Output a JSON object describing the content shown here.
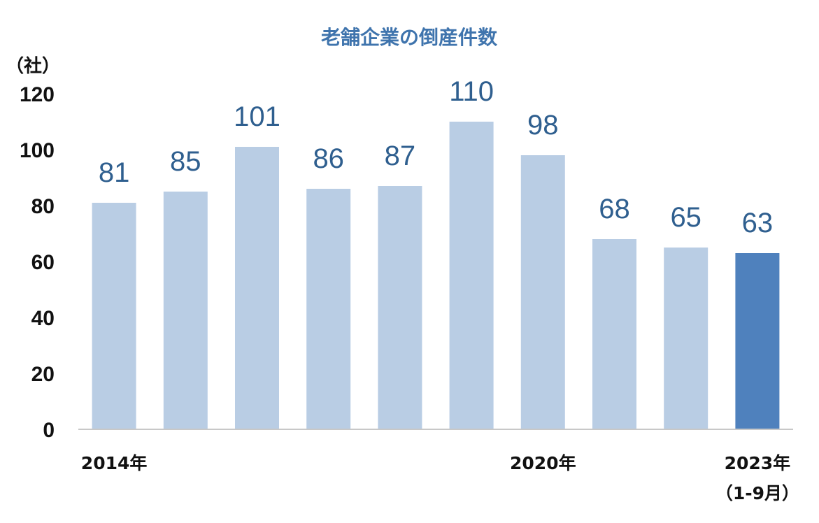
{
  "chart_data": {
    "type": "bar",
    "title": "老舗企業の倒産件数",
    "ylabel": "（社）",
    "ylim": [
      0,
      120
    ],
    "yticks": [
      0,
      20,
      40,
      60,
      80,
      100,
      120
    ],
    "categories": [
      "2014年",
      "",
      "",
      "",
      "",
      "",
      "2020年",
      "",
      "",
      "2023年"
    ],
    "category_sublabels": [
      "",
      "",
      "",
      "",
      "",
      "",
      "",
      "",
      "",
      "（1-9月）"
    ],
    "values": [
      81,
      85,
      101,
      86,
      87,
      110,
      98,
      68,
      65,
      63
    ],
    "data_labels": [
      "81",
      "85",
      "101",
      "86",
      "87",
      "110",
      "98",
      "68",
      "65",
      "63"
    ],
    "colors": {
      "bar": "#b9cde4",
      "highlight_bar": "#4f81bd",
      "highlight_index": 9,
      "label": "#2f5f8f",
      "title": "#3f74ad"
    },
    "grid": false,
    "legend": "none"
  }
}
